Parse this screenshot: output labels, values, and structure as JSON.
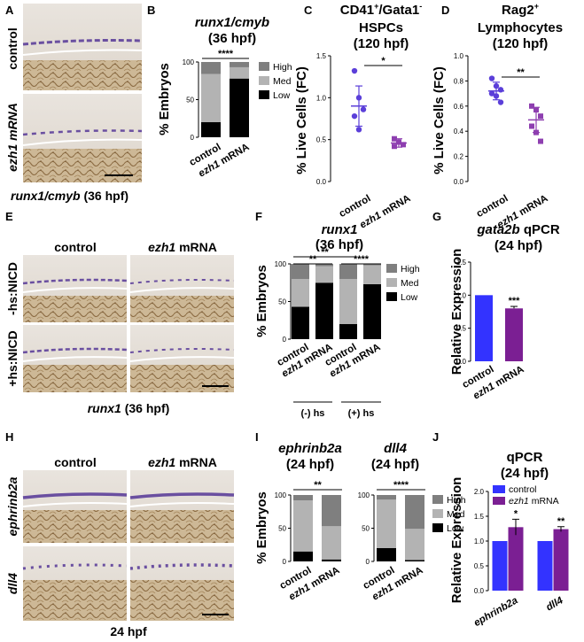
{
  "panel_letters": [
    "A",
    "B",
    "C",
    "D",
    "E",
    "F",
    "G",
    "H",
    "I",
    "J"
  ],
  "panel_a": {
    "row_labels": [
      "control",
      "ezh1 mRNA"
    ],
    "caption_italic": "runx1/cmyb",
    "caption_rest": " (36 hpf)"
  },
  "panel_e": {
    "col_labels": [
      "control",
      "ezh1"
    ],
    "col_label_suffix": " mRNA",
    "row_labels": [
      "-hs:NICD",
      "+hs:NICD"
    ],
    "caption_italic": "runx1",
    "caption_rest": " (36 hpf)"
  },
  "panel_h": {
    "col_labels": [
      "control",
      "ezh1"
    ],
    "col_label_suffix": " mRNA",
    "row_labels": [
      "ephrinb2a",
      "dll4"
    ],
    "caption": "24 hpf"
  },
  "colors": {
    "high": "#7f7f7f",
    "med": "#b3b3b3",
    "low": "#000000",
    "control": "#3333ff",
    "ezh1": "#7b1f93",
    "scatter_control": "#5b3fd9",
    "scatter_ezh1": "#8e3fb0"
  },
  "chart_data": [
    {
      "id": "B",
      "type": "bar",
      "stacked": true,
      "title": "runx1/cmyb",
      "subtitle": "(36 hpf)",
      "ylabel": "% Embryos",
      "ylim": [
        0,
        100
      ],
      "yticks": [
        "0",
        "50",
        "100"
      ],
      "categories": [
        "control",
        "ezh1 mRNA"
      ],
      "series": [
        {
          "name": "Low",
          "values": [
            20,
            78
          ]
        },
        {
          "name": "Med",
          "values": [
            64,
            15
          ]
        },
        {
          "name": "High",
          "values": [
            16,
            7
          ]
        }
      ],
      "legend": "right",
      "significance": [
        "****"
      ]
    },
    {
      "id": "C",
      "type": "scatter",
      "title": "CD41+/Gata1-",
      "title_sup": [
        "+",
        "-"
      ],
      "subtitle": "HSPCs",
      "subtitle2": "(120 hpf)",
      "ylabel": "% Live Cells (FC)",
      "ylim": [
        0,
        1.5
      ],
      "yticks": [
        "0.0",
        "0.5",
        "1.0",
        "1.5"
      ],
      "categories": [
        "control",
        "ezh1 mRNA"
      ],
      "points": [
        [
          1.32,
          1.0,
          0.86,
          0.78,
          0.62
        ],
        [
          0.51,
          0.47,
          0.44,
          0.42
        ]
      ],
      "mean": [
        0.9,
        0.46
      ],
      "sd": [
        0.24,
        0.05
      ],
      "significance": [
        "*"
      ]
    },
    {
      "id": "D",
      "type": "scatter",
      "title": "Rag2+",
      "subtitle": "Lymphocytes",
      "subtitle2": "(120 hpf)",
      "ylabel": "% Live Cells (FC)",
      "ylim": [
        0,
        1.0
      ],
      "yticks": [
        "0.0",
        "0.2",
        "0.4",
        "0.6",
        "0.8",
        "1.0"
      ],
      "categories": [
        "control",
        "ezh1 mRNA"
      ],
      "points": [
        [
          0.82,
          0.76,
          0.73,
          0.7,
          0.68,
          0.63
        ],
        [
          0.6,
          0.57,
          0.52,
          0.44,
          0.39,
          0.32
        ]
      ],
      "mean": [
        0.72,
        0.49
      ],
      "sd": [
        0.07,
        0.1
      ],
      "significance": [
        "**"
      ]
    },
    {
      "id": "F",
      "type": "bar",
      "stacked": true,
      "title": "runx1",
      "subtitle": "(36 hpf)",
      "ylabel": "% Embryos",
      "ylim": [
        0,
        100
      ],
      "yticks": [
        "0",
        "50",
        "100"
      ],
      "categories": [
        "control",
        "ezh1 mRNA",
        "control",
        "ezh1 mRNA"
      ],
      "groups": [
        "(-) hs",
        "(+) hs"
      ],
      "series": [
        {
          "name": "Low",
          "values": [
            43,
            75,
            20,
            73
          ]
        },
        {
          "name": "Med",
          "values": [
            37,
            22,
            60,
            25
          ]
        },
        {
          "name": "High",
          "values": [
            20,
            3,
            20,
            2
          ]
        }
      ],
      "legend": "right",
      "significance": [
        "**",
        "**",
        "****"
      ]
    },
    {
      "id": "G",
      "type": "bar",
      "title_italic": "gata2b",
      "title_rest": " qPCR",
      "subtitle": "(24 hpf)",
      "ylabel": "Relative Expression",
      "ylim": [
        0,
        1.5
      ],
      "yticks": [
        "0.0",
        "0.5",
        "1.0",
        "1.5"
      ],
      "categories": [
        "control",
        "ezh1 mRNA"
      ],
      "values": [
        1.0,
        0.8
      ],
      "err": [
        0,
        0.03
      ],
      "significance": [
        "***"
      ]
    },
    {
      "id": "I",
      "type": "bar",
      "stacked": true,
      "titles": [
        "ephrinb2a",
        "dll4"
      ],
      "subtitle": "(24 hpf)",
      "ylabel": "% Embryos",
      "ylim": [
        0,
        100
      ],
      "yticks": [
        "0",
        "50",
        "100"
      ],
      "categories": [
        "control",
        "ezh1 mRNA"
      ],
      "panels": [
        {
          "series": [
            {
              "name": "Low",
              "values": [
                15,
                3
              ]
            },
            {
              "name": "Med",
              "values": [
                77,
                50
              ]
            },
            {
              "name": "High",
              "values": [
                8,
                47
              ]
            }
          ],
          "significance": "**"
        },
        {
          "series": [
            {
              "name": "Low",
              "values": [
                20,
                2
              ]
            },
            {
              "name": "Med",
              "values": [
                73,
                47
              ]
            },
            {
              "name": "High",
              "values": [
                7,
                51
              ]
            }
          ],
          "significance": "****"
        }
      ],
      "legend": "right"
    },
    {
      "id": "J",
      "type": "bar",
      "title": "qPCR",
      "subtitle": "(24 hpf)",
      "ylabel": "Relative Expression",
      "ylim": [
        0,
        2.0
      ],
      "yticks": [
        "0.0",
        "0.5",
        "1.0",
        "1.5",
        "2.0"
      ],
      "categories": [
        "ephrinb2a",
        "dll4"
      ],
      "series": [
        {
          "name": "control",
          "values": [
            1.0,
            1.0
          ],
          "err": [
            0,
            0
          ]
        },
        {
          "name": "ezh1 mRNA",
          "values": [
            1.28,
            1.24
          ],
          "err": [
            0.16,
            0.05
          ]
        }
      ],
      "significance": [
        "*",
        "**"
      ],
      "legend": "top-left"
    }
  ]
}
